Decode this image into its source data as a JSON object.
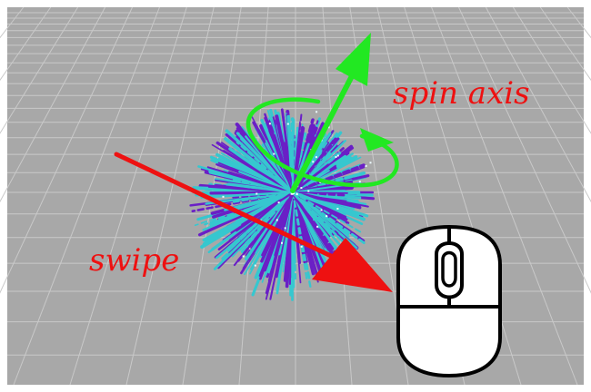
{
  "labels": {
    "spin_axis": "spin axis",
    "swipe": "swipe"
  },
  "colors": {
    "background": "#a9a9a9",
    "grid_line": "#c9c9c9",
    "frame": "#ffffff",
    "sphere_purple": "#6a1fc6",
    "sphere_cyan": "#36c7cf",
    "axis_arrow": "#22e822",
    "swipe_arrow": "#ee1111",
    "label_red": "#ee1111"
  },
  "icons": {
    "mouse": "mouse-icon",
    "axis": "spin-axis-arrow-icon",
    "rotation": "rotation-arrow-icon",
    "swipe": "swipe-arrow-icon"
  }
}
